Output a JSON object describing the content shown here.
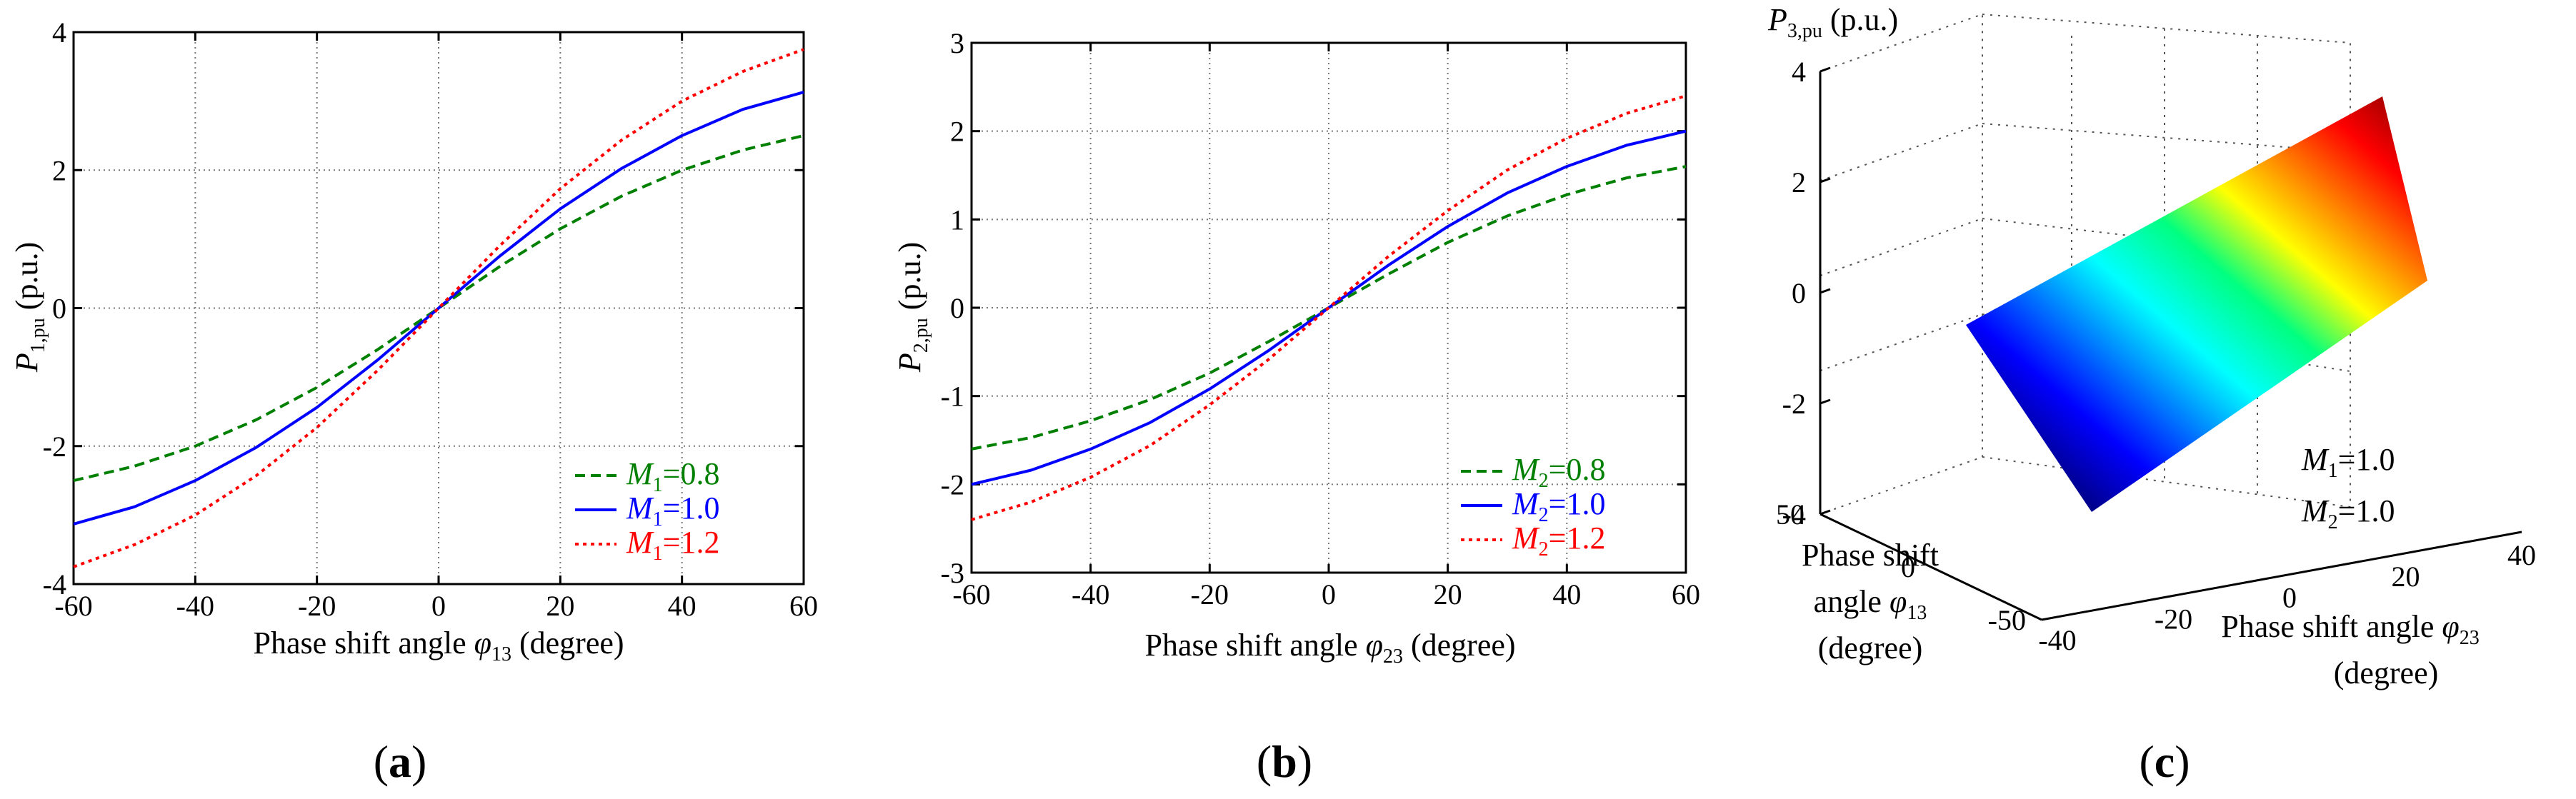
{
  "chart_data": [
    {
      "type": "line",
      "id": "a",
      "panel_label_pre": "(",
      "panel_label": "a",
      "panel_label_post": ")",
      "xlabel": "Phase shift angle φ13 (degree)",
      "xlabel_parts": {
        "pre": "Phase shift angle ",
        "sym": "φ",
        "sub": "13",
        "post": " (degree)"
      },
      "ylabel_parts": {
        "sym": "P",
        "sub": "1,pu",
        "post": " (p.u.)"
      },
      "xlim": [
        -60,
        60
      ],
      "ylim": [
        -4,
        4
      ],
      "xticks": [
        -60,
        -40,
        -20,
        0,
        20,
        40,
        60
      ],
      "yticks": [
        -4,
        -2,
        0,
        2,
        4
      ],
      "x": [
        -60,
        -50,
        -40,
        -30,
        -20,
        -10,
        0,
        10,
        20,
        30,
        40,
        50,
        60
      ],
      "series": [
        {
          "name": "M1=0.8",
          "sym": "M",
          "sub": "1",
          "val": "=0.8",
          "color": "#008000",
          "dash": "dashed",
          "values": [
            -2.5,
            -2.29,
            -2.0,
            -1.62,
            -1.15,
            -0.6,
            0,
            0.6,
            1.15,
            1.62,
            2.0,
            2.29,
            2.5
          ]
        },
        {
          "name": "M1=1.0",
          "sym": "M",
          "sub": "1",
          "val": "=1.0",
          "color": "#0000ff",
          "dash": "solid",
          "values": [
            -3.13,
            -2.88,
            -2.5,
            -2.02,
            -1.44,
            -0.75,
            0,
            0.75,
            1.44,
            2.02,
            2.5,
            2.88,
            3.13
          ]
        },
        {
          "name": "M1=1.2",
          "sym": "M",
          "sub": "1",
          "val": "=1.2",
          "color": "#ff0000",
          "dash": "dotted",
          "values": [
            -3.75,
            -3.43,
            -3.0,
            -2.43,
            -1.73,
            -0.9,
            0,
            0.9,
            1.73,
            2.43,
            3.0,
            3.43,
            3.75
          ]
        }
      ],
      "legend": "bottom-right"
    },
    {
      "type": "line",
      "id": "b",
      "panel_label_pre": "(",
      "panel_label": "b",
      "panel_label_post": ")",
      "xlabel": "Phase shift angle φ23 (degree)",
      "xlabel_parts": {
        "pre": "Phase shift angle ",
        "sym": "φ",
        "sub": "23",
        "post": " (degree)"
      },
      "ylabel_parts": {
        "sym": "P",
        "sub": "2,pu",
        "post": " (p.u.)"
      },
      "xlim": [
        -60,
        60
      ],
      "ylim": [
        -3,
        3
      ],
      "xticks": [
        -60,
        -40,
        -20,
        0,
        20,
        40,
        60
      ],
      "yticks": [
        -3,
        -2,
        -1,
        0,
        1,
        2,
        3
      ],
      "x": [
        -60,
        -50,
        -40,
        -30,
        -20,
        -10,
        0,
        10,
        20,
        30,
        40,
        50,
        60
      ],
      "series": [
        {
          "name": "M2=0.8",
          "sym": "M",
          "sub": "2",
          "val": "=0.8",
          "color": "#008000",
          "dash": "dashed",
          "values": [
            -1.6,
            -1.47,
            -1.28,
            -1.04,
            -0.74,
            -0.38,
            0,
            0.38,
            0.74,
            1.04,
            1.28,
            1.47,
            1.6
          ]
        },
        {
          "name": "M2=1.0",
          "sym": "M",
          "sub": "2",
          "val": "=1.0",
          "color": "#0000ff",
          "dash": "solid",
          "values": [
            -2.0,
            -1.84,
            -1.6,
            -1.3,
            -0.92,
            -0.48,
            0,
            0.48,
            0.92,
            1.3,
            1.6,
            1.84,
            2.0
          ]
        },
        {
          "name": "M2=1.2",
          "sym": "M",
          "sub": "2",
          "val": "=1.2",
          "color": "#ff0000",
          "dash": "dotted",
          "values": [
            -2.4,
            -2.2,
            -1.92,
            -1.56,
            -1.1,
            -0.58,
            0,
            0.58,
            1.1,
            1.56,
            1.92,
            2.2,
            2.4
          ]
        }
      ],
      "legend": "bottom-right"
    },
    {
      "type": "surface",
      "id": "c",
      "panel_label_pre": "(",
      "panel_label": "c",
      "panel_label_post": ")",
      "zlabel_parts": {
        "sym": "P",
        "sub": "3,pu",
        "post": " (p.u.)"
      },
      "ylabel_lines": [
        "Phase shift",
        "angle φ13",
        "(degree)"
      ],
      "ylabel_parts": {
        "line1": "Phase shift",
        "pre": "angle ",
        "sym": "φ",
        "sub": "13",
        "line3": "(degree)"
      },
      "xlabel_parts": {
        "pre": "Phase shift angle ",
        "sym": "φ",
        "sub": "23",
        "line2": "(degree)"
      },
      "zticks": [
        -4,
        -2,
        0,
        2,
        4
      ],
      "phi13_ticks": [
        -50,
        0,
        50
      ],
      "phi23_ticks": [
        -40,
        -20,
        0,
        20,
        40
      ],
      "zlim": [
        -4,
        4
      ],
      "annotation": [
        {
          "sym": "M",
          "sub": "1",
          "val": "=1.0"
        },
        {
          "sym": "M",
          "sub": "2",
          "val": "=1.0"
        }
      ],
      "colormap": "jet"
    }
  ]
}
